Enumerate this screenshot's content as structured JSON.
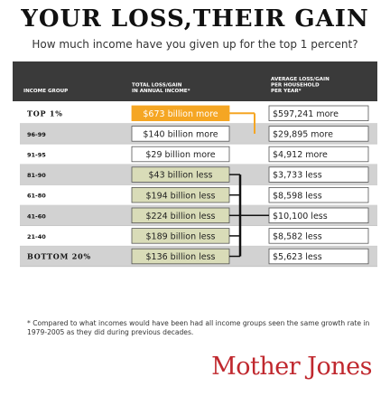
{
  "title": "YOUR LOSS,THEIR GAIN",
  "subtitle": "How much income have you given up for the top 1 percent?",
  "footnote": "* Compared to what incomes would have been had all income groups seen the same growth rate in 1979-2005 as they did during previous decades.",
  "logo": "Mother Jones",
  "colors": {
    "header_bg": "#3a3a3a",
    "header_text": "#ffffff",
    "stripe": "#d2d2d2",
    "gain_fill": "#f5a623",
    "loss_fill": "#d9dcb8",
    "outline": "#555555",
    "connector": "#111111",
    "red": "#c0282e"
  },
  "chart_data": {
    "type": "table",
    "columns": [
      "INCOME GROUP",
      "TOTAL LOSS/GAIN IN ANNUAL INCOME*",
      "AVERAGE LOSS/GAIN PER HOUSEHOLD PER YEAR*"
    ],
    "rows": [
      {
        "group": "TOP 1%",
        "total": "$673 billion more",
        "total_billions": 673,
        "direction": "gain",
        "per_household": "$597,241 more",
        "per_household_usd": 597241
      },
      {
        "group": "96-99",
        "total": "$140 billion more",
        "total_billions": 140,
        "direction": "gain",
        "per_household": "$29,895 more",
        "per_household_usd": 29895
      },
      {
        "group": "91-95",
        "total": "$29 billion more",
        "total_billions": 29,
        "direction": "gain",
        "per_household": "$4,912 more",
        "per_household_usd": 4912
      },
      {
        "group": "81-90",
        "total": "$43 billion less",
        "total_billions": -43,
        "direction": "loss",
        "per_household": "$3,733 less",
        "per_household_usd": -3733
      },
      {
        "group": "61-80",
        "total": "$194 billion less",
        "total_billions": -194,
        "direction": "loss",
        "per_household": "$8,598 less",
        "per_household_usd": -8598
      },
      {
        "group": "41-60",
        "total": "$224 billion less",
        "total_billions": -224,
        "direction": "loss",
        "per_household": "$10,100 less",
        "per_household_usd": -10100
      },
      {
        "group": "21-40",
        "total": "$189 billion less",
        "total_billions": -189,
        "direction": "loss",
        "per_household": "$8,582 less",
        "per_household_usd": -8582
      },
      {
        "group": "BOTTOM 20%",
        "total": "$136 billion less",
        "total_billions": -136,
        "direction": "loss",
        "per_household": "$5,623 less",
        "per_household_usd": -5623
      }
    ]
  }
}
